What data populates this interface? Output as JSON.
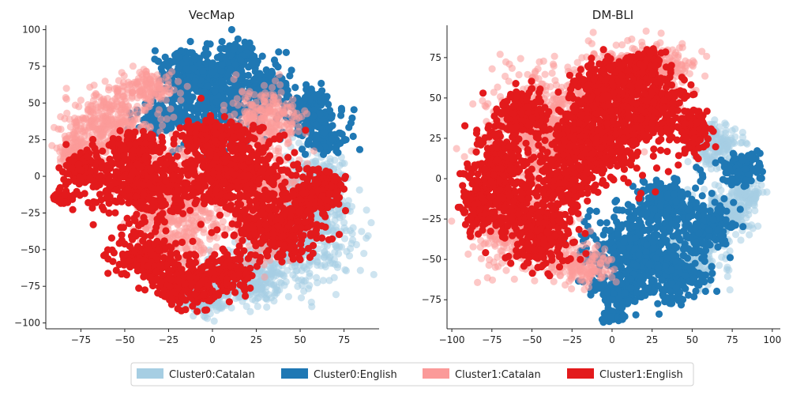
{
  "chart_data": [
    {
      "type": "scatter",
      "title": "VecMap",
      "xlabel": "",
      "ylabel": "",
      "xlim": [
        -95,
        95
      ],
      "ylim": [
        -104,
        103
      ],
      "xticks": [
        -75,
        -50,
        -25,
        0,
        25,
        50,
        75
      ],
      "yticks": [
        -100,
        -75,
        -50,
        -25,
        0,
        25,
        50,
        75,
        100
      ],
      "series": [
        {
          "name": "Cluster0:Catalan",
          "color": "#a6cee3",
          "alpha": 0.55,
          "blobs": [
            {
              "cx": 50,
              "cy": -40,
              "rx": 28,
              "ry": 30
            },
            {
              "cx": 20,
              "cy": -70,
              "rx": 25,
              "ry": 18
            },
            {
              "cx": 60,
              "cy": -10,
              "rx": 18,
              "ry": 25
            },
            {
              "cx": -5,
              "cy": -85,
              "rx": 15,
              "ry": 10
            }
          ]
        },
        {
          "name": "Cluster0:English",
          "color": "#1f78b4",
          "alpha": 1,
          "blobs": [
            {
              "cx": 5,
              "cy": 55,
              "rx": 30,
              "ry": 30
            },
            {
              "cx": -15,
              "cy": 75,
              "rx": 15,
              "ry": 12
            },
            {
              "cx": 15,
              "cy": 82,
              "rx": 12,
              "ry": 8
            },
            {
              "cx": 55,
              "cy": 45,
              "rx": 15,
              "ry": 15
            },
            {
              "cx": 65,
              "cy": 25,
              "rx": 12,
              "ry": 10
            },
            {
              "cx": -30,
              "cy": 40,
              "rx": 15,
              "ry": 10
            },
            {
              "cx": 35,
              "cy": 60,
              "rx": 10,
              "ry": 10
            }
          ]
        },
        {
          "name": "Cluster1:Catalan",
          "color": "#fb9a99",
          "alpha": 0.55,
          "blobs": [
            {
              "cx": -60,
              "cy": 35,
              "rx": 25,
              "ry": 25
            },
            {
              "cx": -80,
              "cy": 20,
              "rx": 10,
              "ry": 8
            },
            {
              "cx": 30,
              "cy": 40,
              "rx": 20,
              "ry": 20
            },
            {
              "cx": -35,
              "cy": 60,
              "rx": 15,
              "ry": 12
            },
            {
              "cx": -20,
              "cy": -20,
              "rx": 25,
              "ry": 40
            },
            {
              "cx": 30,
              "cy": -20,
              "rx": 20,
              "ry": 30
            }
          ]
        },
        {
          "name": "Cluster1:English",
          "color": "#e31a1c",
          "alpha": 1,
          "blobs": [
            {
              "cx": -40,
              "cy": -5,
              "rx": 30,
              "ry": 25
            },
            {
              "cx": -75,
              "cy": 5,
              "rx": 12,
              "ry": 12
            },
            {
              "cx": 10,
              "cy": 5,
              "rx": 30,
              "ry": 25
            },
            {
              "cx": 35,
              "cy": -35,
              "rx": 25,
              "ry": 20
            },
            {
              "cx": -35,
              "cy": -55,
              "rx": 20,
              "ry": 15
            },
            {
              "cx": -15,
              "cy": -75,
              "rx": 20,
              "ry": 15
            },
            {
              "cx": 10,
              "cy": -65,
              "rx": 15,
              "ry": 12
            },
            {
              "cx": 55,
              "cy": -15,
              "rx": 12,
              "ry": 15
            },
            {
              "cx": -45,
              "cy": 20,
              "rx": 15,
              "ry": 10
            },
            {
              "cx": 0,
              "cy": 30,
              "rx": 20,
              "ry": 10
            },
            {
              "cx": 65,
              "cy": -5,
              "rx": 10,
              "ry": 8
            },
            {
              "cx": -85,
              "cy": -15,
              "rx": 5,
              "ry": 4
            }
          ]
        }
      ]
    },
    {
      "type": "scatter",
      "title": "DM-BLI",
      "xlabel": "",
      "ylabel": "",
      "xlim": [
        -103,
        105
      ],
      "ylim": [
        -93,
        95
      ],
      "xticks": [
        -100,
        -75,
        -50,
        -25,
        0,
        25,
        50,
        75,
        100
      ],
      "yticks": [
        -75,
        -50,
        -25,
        0,
        25,
        50,
        75
      ],
      "series": [
        {
          "name": "Cluster0:Catalan",
          "color": "#a6cee3",
          "alpha": 0.55,
          "blobs": [
            {
              "cx": 65,
              "cy": 20,
              "rx": 15,
              "ry": 15
            },
            {
              "cx": 70,
              "cy": -20,
              "rx": 20,
              "ry": 15
            },
            {
              "cx": 50,
              "cy": -50,
              "rx": 20,
              "ry": 15
            },
            {
              "cx": 85,
              "cy": -10,
              "rx": 10,
              "ry": 8
            }
          ]
        },
        {
          "name": "Cluster0:English",
          "color": "#1f78b4",
          "alpha": 1,
          "blobs": [
            {
              "cx": 15,
              "cy": -45,
              "rx": 30,
              "ry": 25
            },
            {
              "cx": 40,
              "cy": -60,
              "rx": 20,
              "ry": 15
            },
            {
              "cx": 5,
              "cy": -70,
              "rx": 15,
              "ry": 10
            },
            {
              "cx": 60,
              "cy": -30,
              "rx": 15,
              "ry": 15
            },
            {
              "cx": 80,
              "cy": 5,
              "rx": 12,
              "ry": 12
            },
            {
              "cx": 35,
              "cy": -15,
              "rx": 20,
              "ry": 15
            },
            {
              "cx": 0,
              "cy": -85,
              "rx": 8,
              "ry": 5
            }
          ]
        },
        {
          "name": "Cluster1:Catalan",
          "color": "#fb9a99",
          "alpha": 0.55,
          "blobs": [
            {
              "cx": -40,
              "cy": 30,
              "rx": 35,
              "ry": 35
            },
            {
              "cx": 10,
              "cy": 55,
              "rx": 30,
              "ry": 25
            },
            {
              "cx": -55,
              "cy": -30,
              "rx": 30,
              "ry": 25
            },
            {
              "cx": -20,
              "cy": -55,
              "rx": 20,
              "ry": 12
            },
            {
              "cx": 30,
              "cy": 70,
              "rx": 20,
              "ry": 12
            }
          ]
        },
        {
          "name": "Cluster1:English",
          "color": "#e31a1c",
          "alpha": 1,
          "blobs": [
            {
              "cx": -10,
              "cy": 30,
              "rx": 30,
              "ry": 30
            },
            {
              "cx": 0,
              "cy": 60,
              "rx": 20,
              "ry": 15
            },
            {
              "cx": 25,
              "cy": 45,
              "rx": 20,
              "ry": 25
            },
            {
              "cx": -70,
              "cy": 0,
              "rx": 20,
              "ry": 30
            },
            {
              "cx": -45,
              "cy": -35,
              "rx": 20,
              "ry": 20
            },
            {
              "cx": -55,
              "cy": 40,
              "rx": 15,
              "ry": 15
            },
            {
              "cx": -30,
              "cy": 0,
              "rx": 20,
              "ry": 20
            },
            {
              "cx": 20,
              "cy": 70,
              "rx": 12,
              "ry": 10
            },
            {
              "cx": -85,
              "cy": -20,
              "rx": 8,
              "ry": 10
            },
            {
              "cx": 50,
              "cy": 30,
              "rx": 10,
              "ry": 15
            }
          ]
        }
      ]
    }
  ],
  "legend": {
    "placement": "bottom-center",
    "entries": [
      {
        "label": "Cluster0:Catalan",
        "color": "#a6cee3"
      },
      {
        "label": "Cluster0:English",
        "color": "#1f78b4"
      },
      {
        "label": "Cluster1:Catalan",
        "color": "#fb9a99"
      },
      {
        "label": "Cluster1:English",
        "color": "#e31a1c"
      }
    ]
  }
}
